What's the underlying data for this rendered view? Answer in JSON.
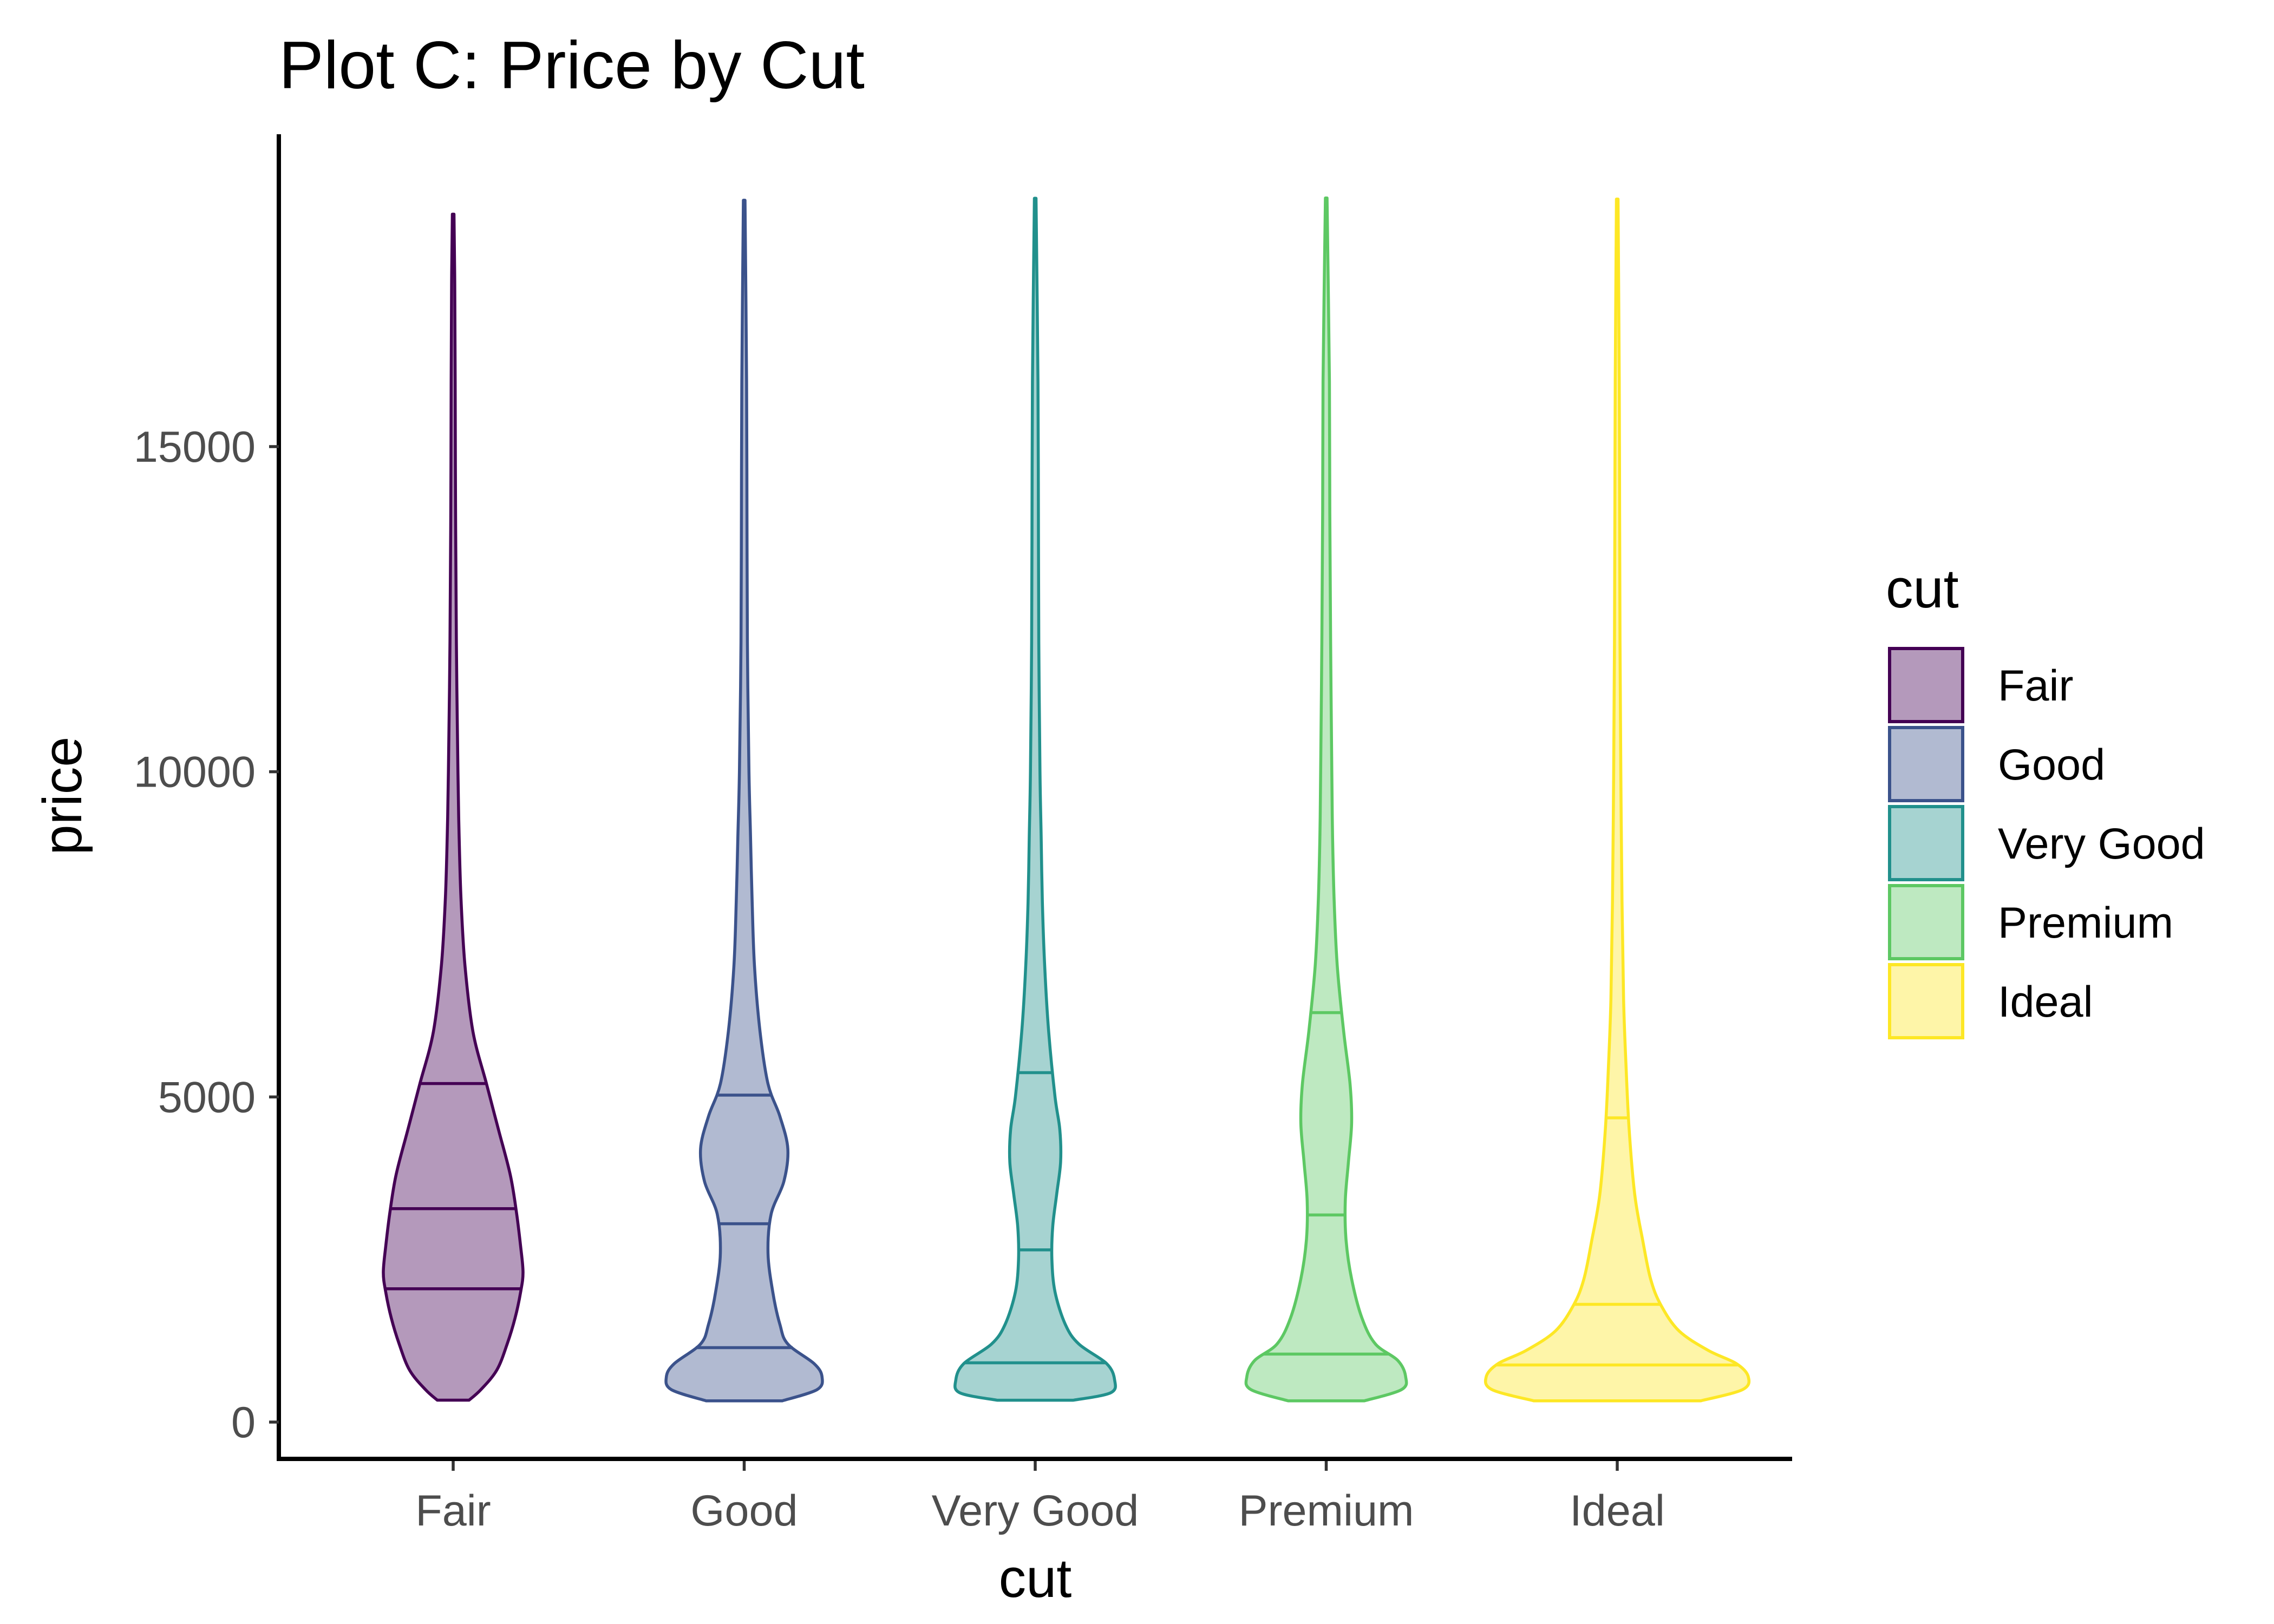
{
  "chart_data": {
    "type": "violin",
    "title": "Plot C: Price by Cut",
    "xlabel": "cut",
    "ylabel": "price",
    "ylim": [
      0,
      18823
    ],
    "yticks": [
      0,
      5000,
      10000,
      15000
    ],
    "categories": [
      "Fair",
      "Good",
      "Very Good",
      "Premium",
      "Ideal"
    ],
    "legend": {
      "title": "cut",
      "position": "right"
    },
    "grid": false,
    "colors": [
      "#440154",
      "#3b528b",
      "#21908c",
      "#5dc863",
      "#fde725"
    ],
    "fill_alpha": 0.4,
    "series": [
      {
        "name": "Fair",
        "min": 337,
        "max": 18574,
        "quantiles": [
          2050,
          3282,
          5206
        ],
        "density": [
          [
            337,
            0.2
          ],
          [
            500,
            0.35
          ],
          [
            800,
            0.55
          ],
          [
            1200,
            0.68
          ],
          [
            1600,
            0.78
          ],
          [
            2000,
            0.85
          ],
          [
            2300,
            0.88
          ],
          [
            2700,
            0.85
          ],
          [
            3200,
            0.8
          ],
          [
            3800,
            0.72
          ],
          [
            4500,
            0.57
          ],
          [
            5200,
            0.42
          ],
          [
            6000,
            0.25
          ],
          [
            7000,
            0.15
          ],
          [
            8000,
            0.1
          ],
          [
            9000,
            0.075
          ],
          [
            10000,
            0.06
          ],
          [
            12000,
            0.04
          ],
          [
            14000,
            0.03
          ],
          [
            16000,
            0.025
          ],
          [
            17500,
            0.02
          ],
          [
            18574,
            0.01
          ]
        ]
      },
      {
        "name": "Good",
        "min": 327,
        "max": 18788,
        "quantiles": [
          1145,
          3050,
          5028
        ],
        "density": [
          [
            327,
            0.48
          ],
          [
            500,
            0.92
          ],
          [
            700,
            0.98
          ],
          [
            900,
            0.88
          ],
          [
            1200,
            0.55
          ],
          [
            1500,
            0.45
          ],
          [
            2000,
            0.36
          ],
          [
            2600,
            0.3
          ],
          [
            3200,
            0.34
          ],
          [
            3700,
            0.5
          ],
          [
            4200,
            0.55
          ],
          [
            4700,
            0.45
          ],
          [
            5200,
            0.3
          ],
          [
            6000,
            0.2
          ],
          [
            7000,
            0.13
          ],
          [
            8000,
            0.1
          ],
          [
            9000,
            0.08
          ],
          [
            10000,
            0.06
          ],
          [
            12000,
            0.04
          ],
          [
            14000,
            0.035
          ],
          [
            16000,
            0.03
          ],
          [
            18788,
            0.01
          ]
        ]
      },
      {
        "name": "Very Good",
        "min": 336,
        "max": 18818,
        "quantiles": [
          912,
          2648,
          5373
        ],
        "density": [
          [
            336,
            0.48
          ],
          [
            450,
            0.95
          ],
          [
            650,
            1.0
          ],
          [
            900,
            0.9
          ],
          [
            1200,
            0.55
          ],
          [
            1500,
            0.38
          ],
          [
            2000,
            0.25
          ],
          [
            2500,
            0.21
          ],
          [
            3000,
            0.22
          ],
          [
            3500,
            0.27
          ],
          [
            4000,
            0.32
          ],
          [
            4500,
            0.31
          ],
          [
            5000,
            0.25
          ],
          [
            6000,
            0.17
          ],
          [
            7000,
            0.12
          ],
          [
            8000,
            0.09
          ],
          [
            9000,
            0.075
          ],
          [
            10000,
            0.06
          ],
          [
            12000,
            0.045
          ],
          [
            14000,
            0.04
          ],
          [
            16000,
            0.035
          ],
          [
            18818,
            0.01
          ]
        ]
      },
      {
        "name": "Premium",
        "min": 326,
        "max": 18823,
        "quantiles": [
          1046,
          3185,
          6296
        ],
        "density": [
          [
            326,
            0.48
          ],
          [
            500,
            0.95
          ],
          [
            700,
            1.0
          ],
          [
            950,
            0.9
          ],
          [
            1200,
            0.62
          ],
          [
            1600,
            0.45
          ],
          [
            2200,
            0.32
          ],
          [
            2800,
            0.25
          ],
          [
            3400,
            0.24
          ],
          [
            4000,
            0.28
          ],
          [
            4600,
            0.32
          ],
          [
            5200,
            0.3
          ],
          [
            6000,
            0.22
          ],
          [
            7000,
            0.14
          ],
          [
            8000,
            0.1
          ],
          [
            9000,
            0.08
          ],
          [
            10000,
            0.07
          ],
          [
            12000,
            0.055
          ],
          [
            14000,
            0.045
          ],
          [
            16000,
            0.04
          ],
          [
            18823,
            0.01
          ]
        ]
      },
      {
        "name": "Ideal",
        "min": 326,
        "max": 18806,
        "quantiles": [
          878,
          1810,
          4678
        ],
        "density": [
          [
            326,
            1.05
          ],
          [
            500,
            1.58
          ],
          [
            700,
            1.65
          ],
          [
            900,
            1.5
          ],
          [
            1100,
            1.15
          ],
          [
            1400,
            0.78
          ],
          [
            1800,
            0.55
          ],
          [
            2200,
            0.42
          ],
          [
            2800,
            0.32
          ],
          [
            3500,
            0.22
          ],
          [
            4500,
            0.15
          ],
          [
            5500,
            0.11
          ],
          [
            6500,
            0.08
          ],
          [
            8000,
            0.06
          ],
          [
            10000,
            0.045
          ],
          [
            12000,
            0.035
          ],
          [
            14000,
            0.03
          ],
          [
            16000,
            0.025
          ],
          [
            18806,
            0.01
          ]
        ]
      }
    ]
  }
}
